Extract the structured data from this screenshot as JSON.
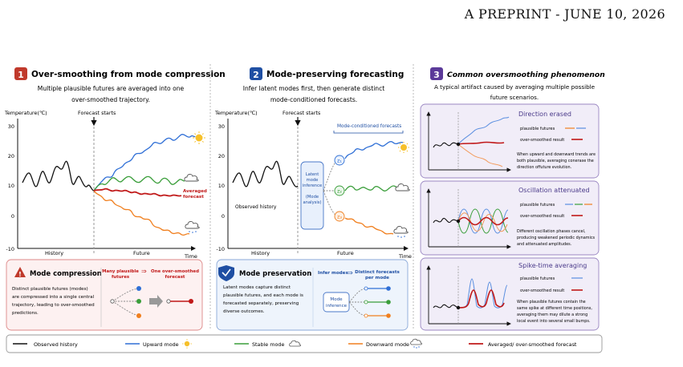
{
  "header": {
    "text": "A PREPRINT - JUNE 10, 2026"
  },
  "panel1": {
    "number": "1",
    "title": "Over-smoothing from mode compression",
    "subtitle_line1": "Multiple plausible futures are averaged into one",
    "subtitle_line2": "over-smoothed trajectory.",
    "ylabel": "Temperature(℃)",
    "forecast_starts": "Forecast starts",
    "yticks": [
      "30",
      "20",
      "10",
      "0",
      "-10"
    ],
    "history_label": "History",
    "future_label": "Future",
    "time_label": "Time",
    "averaged_label_1": "Averaged",
    "averaged_label_2": "forecast",
    "box_title": "Mode compression",
    "box_text": [
      "Distinct plausible futures (modes)",
      "are compressed into a single central",
      "trajectory, leading to over-smoothed",
      "predictions."
    ],
    "box_left_label_1": "Many plausible",
    "box_left_label_2": "futures",
    "box_right_label_1": "One over-smoothed",
    "box_right_label_2": "forecast"
  },
  "panel2": {
    "number": "2",
    "title": "Mode-preserving forecasting",
    "subtitle_line1": "Infer latent modes first, then generate distinct",
    "subtitle_line2": "mode-conditioned forecasts.",
    "ylabel": "Temperature(℃)",
    "forecast_starts": "Forecast starts",
    "yticks": [
      "30",
      "20",
      "10",
      "0",
      "-10"
    ],
    "mode_conditioned": "Mode-conditioned forecasts",
    "observed_history": "Observed history",
    "latent_box": [
      "Latent",
      "mode",
      "inference",
      "",
      "(Mode",
      "analysis)"
    ],
    "z1": "z₁",
    "z2": "z₂",
    "z3": "z₃",
    "history_label": "History",
    "future_label": "Future",
    "time_label": "Time",
    "box_title": "Mode preservation",
    "box_text": [
      "Latent modes capture distinct",
      "plausible futures, and each mode is",
      "forecasted separately, preserving",
      "diverse outcomes."
    ],
    "infer_modes": "Infer modes",
    "distinct_1": "Distinct forecasts",
    "distinct_2": "per mode",
    "mode_inference_1": "Mode",
    "mode_inference_2": "inference"
  },
  "panel3": {
    "number": "3",
    "title": "Common oversmoothing phenomenon",
    "subtitle_line1": "A typical artifact caused by averaging multiple possible",
    "subtitle_line2": "future scenarios.",
    "cards": [
      {
        "title": "Direction erased",
        "legend_plausible": "plausible futures",
        "legend_smoothed": "over-smoothed result",
        "desc": [
          "When upward and downward trends are",
          "both plausible, averaging conerase the",
          "direction offuture evolution."
        ]
      },
      {
        "title": "Oscillation attenuated",
        "legend_plausible": "plausible futures",
        "legend_smoothed": "over-smoothed result",
        "desc": [
          "Different oscillation phases cancel,",
          "producing weakened periodic dynamics",
          "and attenuated amplitudes."
        ]
      },
      {
        "title": "Spike-time averaging",
        "legend_plausible": "plausible futures",
        "legend_smoothed": "over-smoothed result",
        "desc": [
          "When plausible futures contain the",
          "same spike at different time positions,",
          "averaging them may dilute a strong",
          "local event into several small bumps."
        ]
      }
    ]
  },
  "legend": {
    "observed": "Observed history",
    "upward": "Upward mode",
    "stable": "Stable mode",
    "downward": "Downward mode",
    "averaged": "Averaged/ over-smoothed forecast"
  },
  "colors": {
    "history": "#111111",
    "upward": "#2f6fd6",
    "stable": "#3a9e3a",
    "downward": "#f07f1e",
    "averaged": "#c01818",
    "badge_red": "#c0392b",
    "badge_blue": "#1f4fa3",
    "badge_purple": "#5b3a99"
  }
}
